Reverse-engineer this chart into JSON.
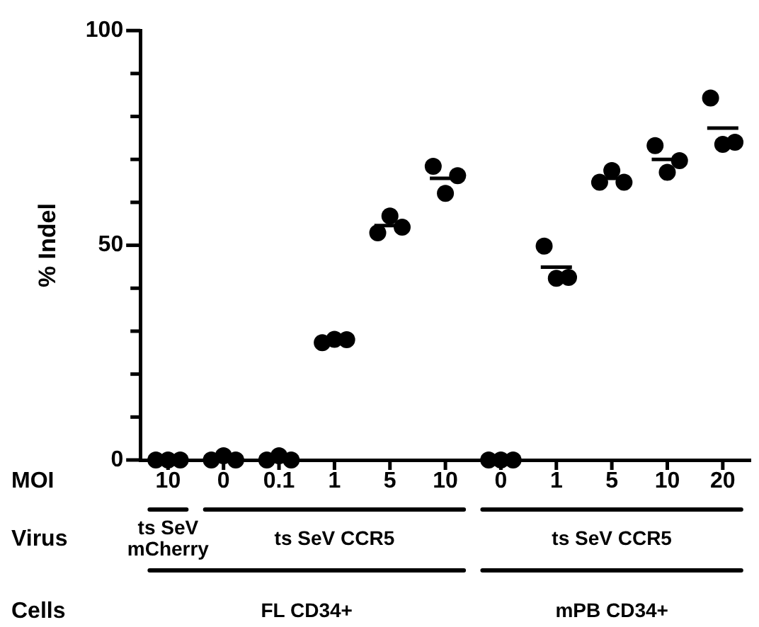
{
  "chart_data": {
    "type": "scatter",
    "ylabel": "% Indel",
    "categories": [
      "10",
      "0",
      "0.1",
      "1",
      "5",
      "10",
      "0",
      "1",
      "5",
      "10",
      "20"
    ],
    "series": [
      {
        "color": "#000000",
        "marker": "circle",
        "values": [
          0,
          0,
          0,
          27.3,
          52.9,
          68.4,
          0,
          49.8,
          64.7,
          73.2,
          84.3
        ]
      },
      {
        "color": "#000000",
        "marker": "circle",
        "values": [
          0,
          1,
          1,
          28.1,
          56.8,
          62.1,
          0,
          42.3,
          67.4,
          67.0,
          73.5
        ]
      },
      {
        "color": "#000000",
        "marker": "circle",
        "values": [
          0,
          0,
          0,
          28.0,
          54.2,
          66.2,
          0,
          42.5,
          64.7,
          69.7,
          74.0
        ]
      },
      {
        "type": "box",
        "color": "#000000",
        "boxes": [
          null,
          null,
          null,
          {
            "low": 27.8,
            "q1": 27.8,
            "median": 27.8,
            "q3": 27.8,
            "high": 27.8
          },
          {
            "low": 54.6,
            "q1": 54.6,
            "median": 54.6,
            "q3": 54.6,
            "high": 54.6
          },
          {
            "low": 65.6,
            "q1": 65.6,
            "median": 65.6,
            "q3": 65.6,
            "high": 65.6
          },
          null,
          {
            "low": 44.9,
            "q1": 44.9,
            "median": 44.9,
            "q3": 44.9,
            "high": 44.9
          },
          {
            "low": 65.6,
            "q1": 65.6,
            "median": 65.6,
            "q3": 65.6,
            "high": 65.6
          },
          {
            "low": 70.0,
            "q1": 70.0,
            "median": 70.0,
            "q3": 70.0,
            "high": 70.0
          },
          {
            "low": 77.3,
            "q1": 77.3,
            "median": 77.3,
            "q3": 77.3,
            "high": 77.3
          }
        ]
      }
    ],
    "ylim": [
      0,
      100
    ],
    "yticks": [
      0,
      {
        "value": 10,
        "label": null
      },
      {
        "value": 20,
        "label": null
      },
      {
        "value": 30,
        "label": null
      },
      {
        "value": 40,
        "label": null
      },
      50,
      {
        "value": 60,
        "label": null
      },
      {
        "value": 70,
        "label": null
      },
      {
        "value": 80,
        "label": null
      },
      {
        "value": 90,
        "label": null
      },
      100
    ],
    "grid": false,
    "legend": false,
    "annotations": [
      "MOI",
      "Virus",
      "Cells",
      "ts SeV\nmCherry",
      "ts SeV CCR5",
      "ts SeV CCR5",
      "FL CD34+",
      "mPB CD34+"
    ]
  }
}
